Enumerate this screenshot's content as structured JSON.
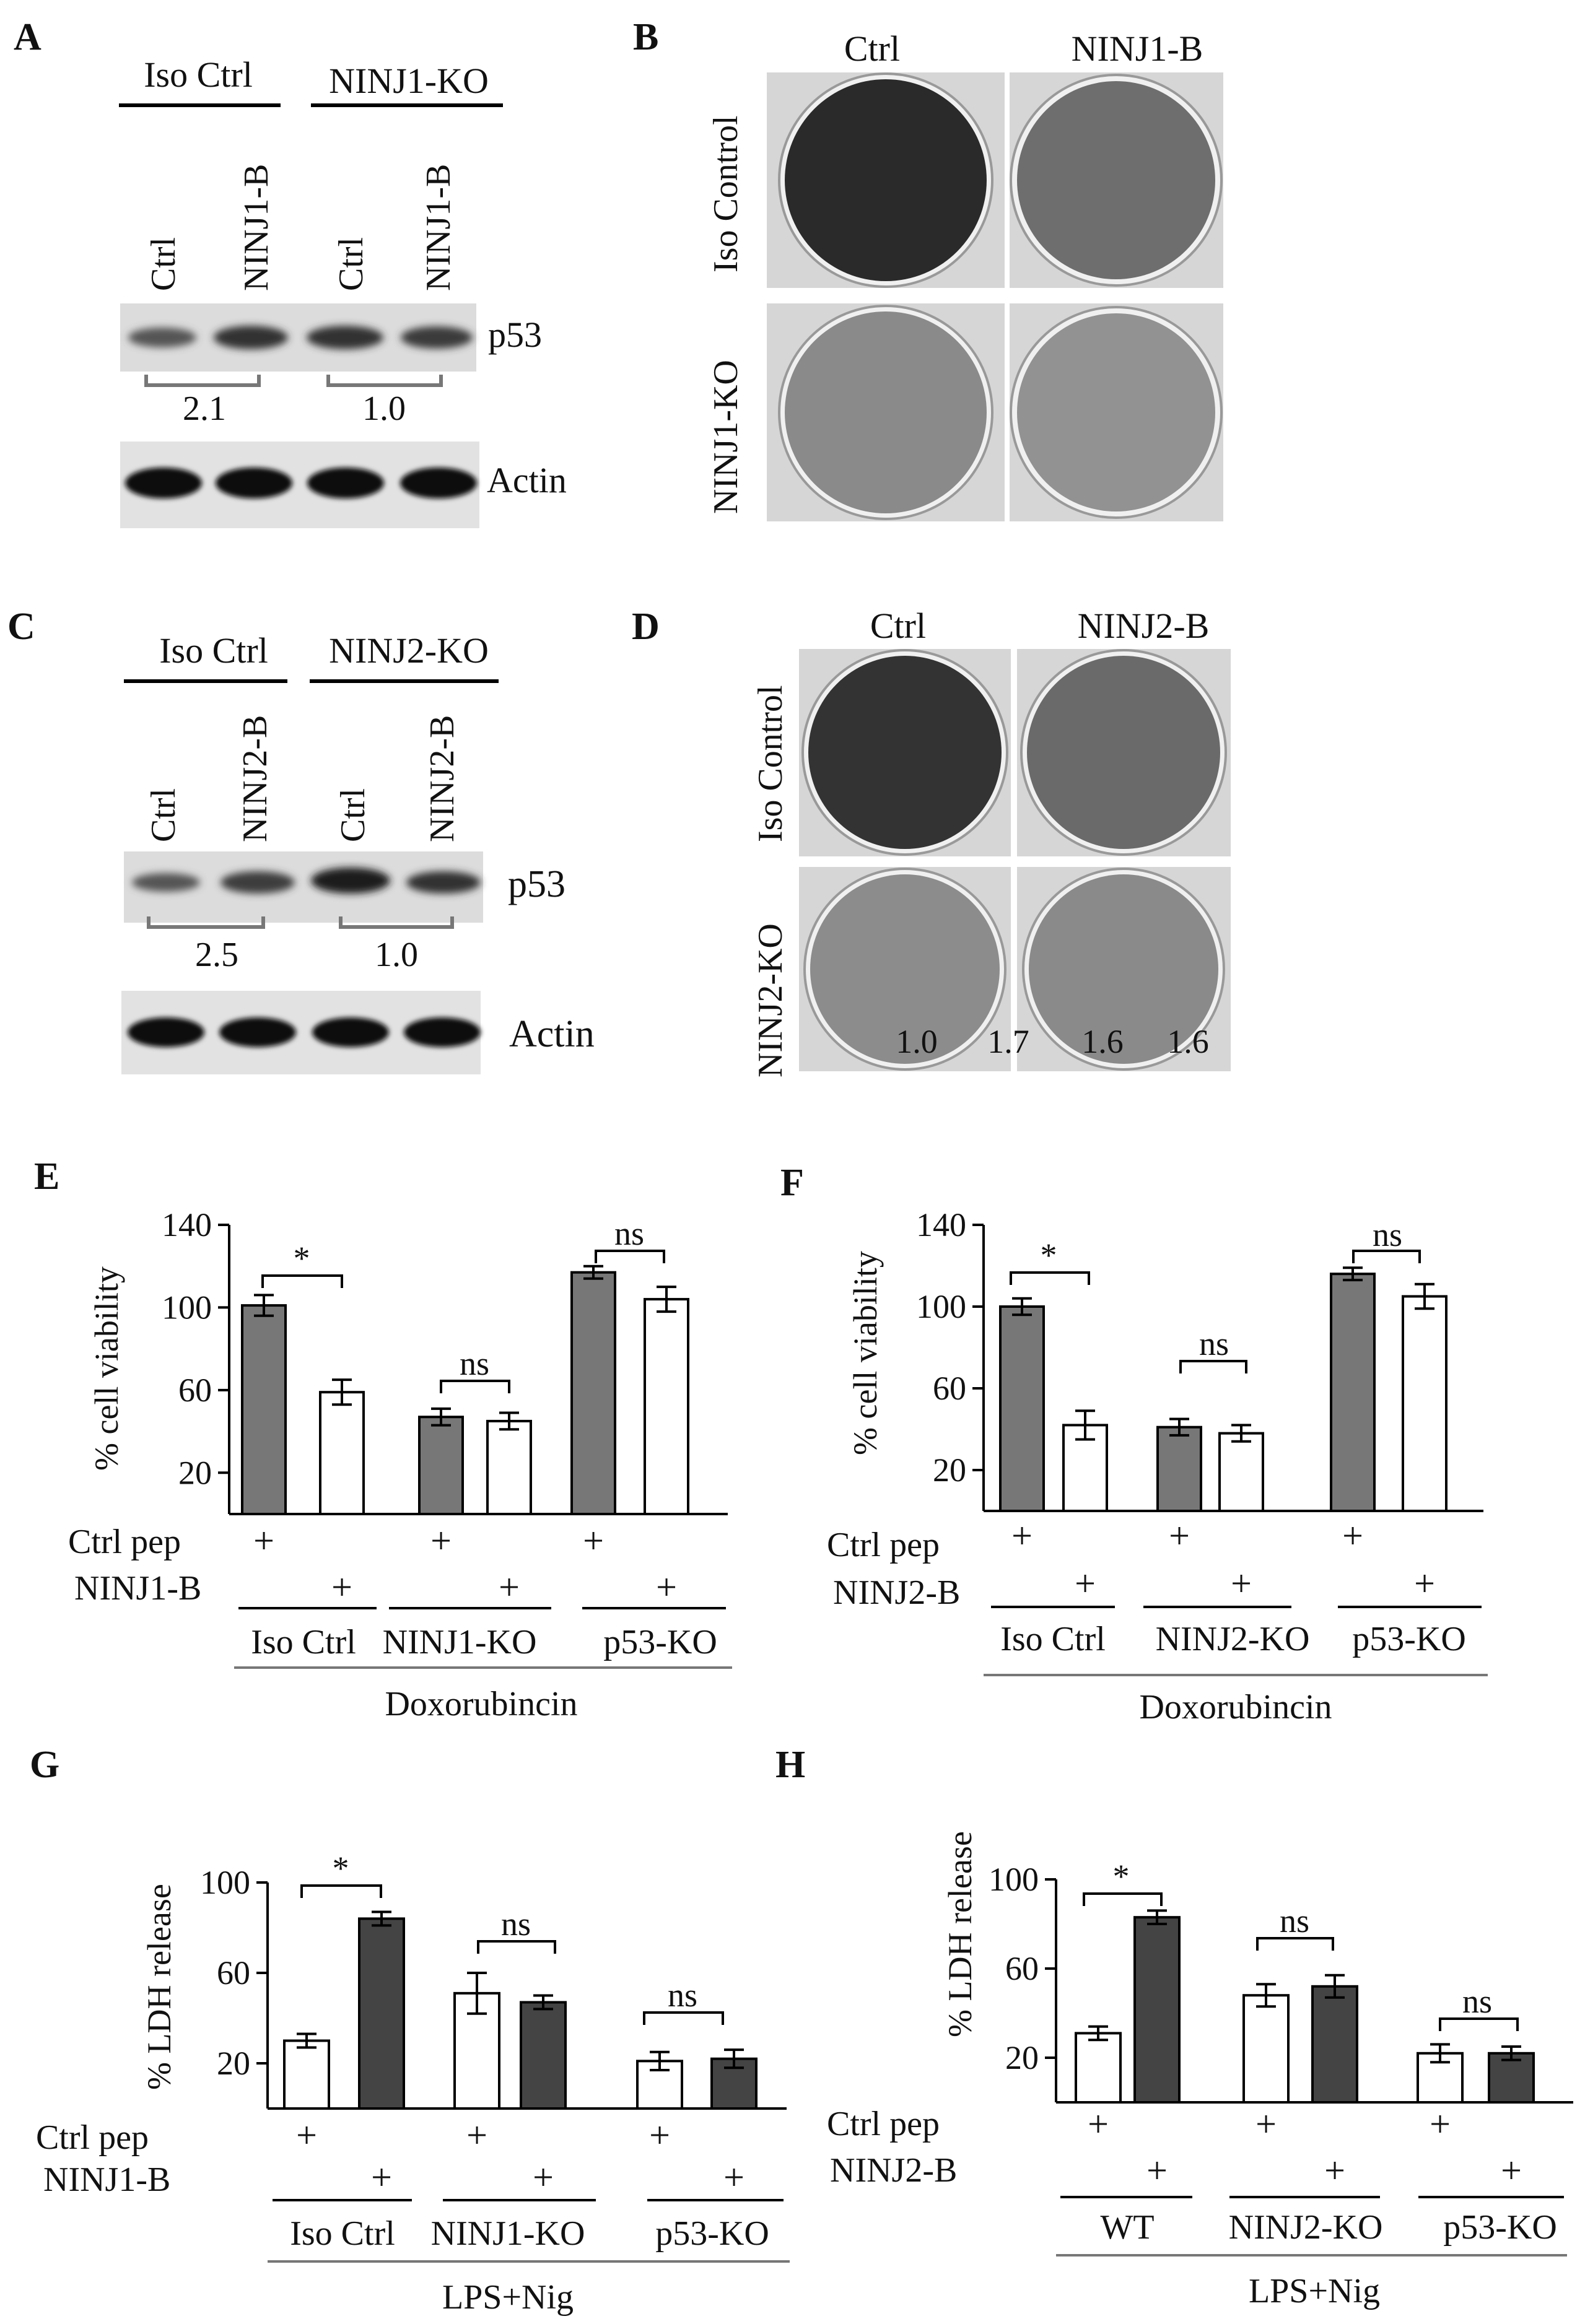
{
  "panels": {
    "A": {
      "letter": "A",
      "groups": [
        "Iso Ctrl",
        "NINJ1-KO"
      ],
      "lanes": [
        "Ctrl",
        "NINJ1-B",
        "Ctrl",
        "NINJ1-B"
      ],
      "band_labels": [
        "p53",
        "Actin"
      ],
      "ratios": [
        "2.1",
        "1.0"
      ]
    },
    "B": {
      "letter": "B",
      "cols": [
        "Ctrl",
        "NINJ1-B"
      ],
      "rows": [
        "Iso Control",
        "NINJ1-KO"
      ]
    },
    "C": {
      "letter": "C",
      "groups": [
        "Iso Ctrl",
        "NINJ2-KO"
      ],
      "lanes": [
        "Ctrl",
        "NINJ2-B",
        "Ctrl",
        "NINJ2-B"
      ],
      "band_labels": [
        "p53",
        "Actin"
      ],
      "ratios": [
        "2.5",
        "1.0"
      ]
    },
    "D": {
      "letter": "D",
      "cols": [
        "Ctrl",
        "NINJ2-B"
      ],
      "rows": [
        "Iso Control",
        "NINJ2-KO"
      ],
      "plate_values": [
        "1.0",
        "1.7",
        "1.6",
        "1.6"
      ]
    },
    "E": {
      "letter": "E",
      "row_labels": [
        "Ctrl pep",
        "NINJ1-B"
      ],
      "plus": "+",
      "groups": [
        "Iso Ctrl",
        "NINJ1-KO",
        "p53-KO"
      ],
      "treatment": "Doxorubincin",
      "sig": [
        "*",
        "ns",
        "ns"
      ]
    },
    "F": {
      "letter": "F",
      "row_labels": [
        "Ctrl pep",
        "NINJ2-B"
      ],
      "plus": "+",
      "groups": [
        "Iso Ctrl",
        "NINJ2-KO",
        "p53-KO"
      ],
      "treatment": "Doxorubincin",
      "sig": [
        "*",
        "ns",
        "ns"
      ]
    },
    "G": {
      "letter": "G",
      "row_labels": [
        "Ctrl pep",
        "NINJ1-B"
      ],
      "plus": "+",
      "groups": [
        "Iso Ctrl",
        "NINJ1-KO",
        "p53-KO"
      ],
      "treatment": "LPS+Nig",
      "sig": [
        "*",
        "ns",
        "ns"
      ]
    },
    "H": {
      "letter": "H",
      "row_labels": [
        "Ctrl pep",
        "NINJ2-B"
      ],
      "plus": "+",
      "groups": [
        "WT",
        "NINJ2-KO",
        "p53-KO"
      ],
      "treatment": "LPS+Nig",
      "sig": [
        "*",
        "ns",
        "ns"
      ]
    }
  },
  "chart_data": [
    {
      "panel": "E",
      "type": "bar",
      "ylabel": "% cell viability",
      "yticks": [
        20,
        60,
        100,
        140
      ],
      "ylim": [
        0,
        140
      ],
      "values": [
        101,
        59,
        47,
        45,
        117,
        104
      ],
      "errors": [
        5,
        6,
        4,
        4,
        3,
        6
      ],
      "fills": [
        "#777777",
        "#ffffff",
        "#777777",
        "#ffffff",
        "#777777",
        "#ffffff"
      ]
    },
    {
      "panel": "F",
      "type": "bar",
      "ylabel": "% cell viability",
      "yticks": [
        20,
        60,
        100,
        140
      ],
      "ylim": [
        0,
        140
      ],
      "values": [
        100,
        42,
        41,
        38,
        116,
        105
      ],
      "errors": [
        4,
        7,
        4,
        4,
        3,
        6
      ],
      "fills": [
        "#777777",
        "#ffffff",
        "#777777",
        "#ffffff",
        "#777777",
        "#ffffff"
      ]
    },
    {
      "panel": "G",
      "type": "bar",
      "ylabel": "% LDH release",
      "yticks": [
        20,
        60,
        100
      ],
      "ylim": [
        0,
        100
      ],
      "values": [
        30,
        84,
        51,
        47,
        21,
        22
      ],
      "errors": [
        3,
        3,
        9,
        3,
        4,
        4
      ],
      "fills": [
        "#ffffff",
        "#444444",
        "#ffffff",
        "#444444",
        "#ffffff",
        "#444444"
      ]
    },
    {
      "panel": "H",
      "type": "bar",
      "ylabel": "% LDH release",
      "yticks": [
        20,
        60,
        100
      ],
      "ylim": [
        0,
        100
      ],
      "values": [
        31,
        83,
        48,
        52,
        22,
        22
      ],
      "errors": [
        3,
        3,
        5,
        5,
        4,
        3
      ],
      "fills": [
        "#ffffff",
        "#444444",
        "#ffffff",
        "#444444",
        "#ffffff",
        "#444444"
      ]
    }
  ]
}
